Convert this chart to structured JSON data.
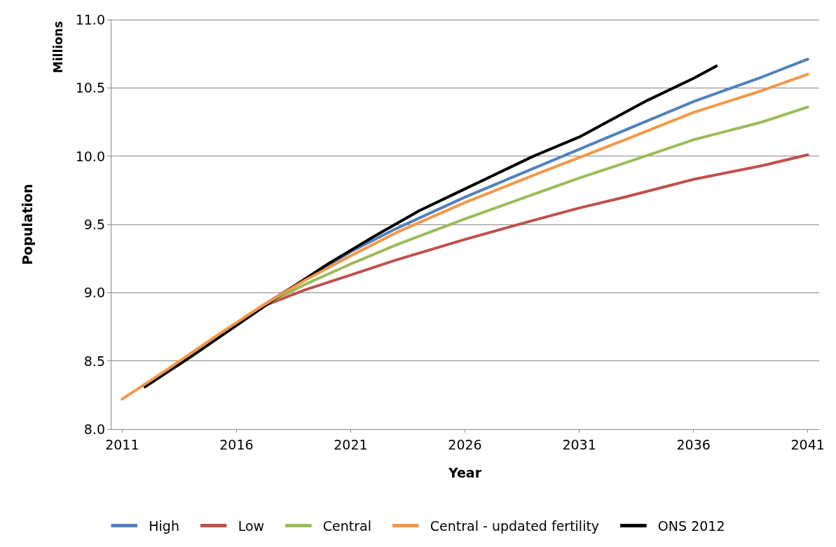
{
  "chart_data": {
    "type": "line",
    "xlabel": "Year",
    "ylabel": "Population",
    "annotations": [
      "Millions"
    ],
    "xlim": [
      2010.5,
      2041.5
    ],
    "xticks": [
      2011,
      2016,
      2021,
      2026,
      2031,
      2036,
      2041
    ],
    "ylim": [
      8,
      11
    ],
    "yticks": [
      {
        "value": 8,
        "label": "8.0"
      },
      {
        "value": 8.5,
        "label": "8.5"
      },
      {
        "value": 9,
        "label": "9.0"
      },
      {
        "value": 9.5,
        "label": "9.5"
      },
      {
        "value": 10,
        "label": "10.0"
      },
      {
        "value": 10.5,
        "label": "10.5"
      },
      {
        "value": 11,
        "label": "11.0"
      }
    ],
    "grid": "y",
    "legend": "bottom",
    "marker": "none",
    "line_style": "solid",
    "series": [
      {
        "name": "High",
        "color": "#4f81bd",
        "x": [
          2017,
          2019,
          2021,
          2023,
          2026,
          2029,
          2031,
          2033,
          2036,
          2039,
          2041
        ],
        "values": [
          8.89,
          9.1,
          9.3,
          9.47,
          9.7,
          9.91,
          10.05,
          10.19,
          10.4,
          10.58,
          10.71
        ]
      },
      {
        "name": "Low",
        "color": "#c0504d",
        "x": [
          2017,
          2019,
          2021,
          2023,
          2026,
          2029,
          2031,
          2033,
          2036,
          2039,
          2041
        ],
        "values": [
          8.89,
          9.02,
          9.13,
          9.24,
          9.39,
          9.53,
          9.62,
          9.7,
          9.83,
          9.93,
          10.01
        ]
      },
      {
        "name": "Central",
        "color": "#9bbb59",
        "x": [
          2017,
          2019,
          2021,
          2023,
          2026,
          2029,
          2031,
          2033,
          2036,
          2039,
          2041
        ],
        "values": [
          8.89,
          9.06,
          9.21,
          9.35,
          9.54,
          9.72,
          9.84,
          9.95,
          10.12,
          10.25,
          10.36
        ]
      },
      {
        "name": "Central - updated fertility",
        "color": "#f79646",
        "x": [
          2011,
          2013,
          2015,
          2017,
          2019,
          2021,
          2023,
          2026,
          2029,
          2031,
          2033,
          2036,
          2039,
          2041
        ],
        "values": [
          8.22,
          8.44,
          8.67,
          8.89,
          9.09,
          9.27,
          9.44,
          9.66,
          9.86,
          9.99,
          10.12,
          10.32,
          10.48,
          10.6
        ]
      },
      {
        "name": "ONS 2012",
        "color": "#000000",
        "x": [
          2012,
          2014,
          2016,
          2018,
          2020,
          2022,
          2024,
          2026,
          2029,
          2031,
          2034,
          2036,
          2037
        ],
        "values": [
          8.31,
          8.53,
          8.76,
          8.99,
          9.21,
          9.41,
          9.6,
          9.76,
          10.0,
          10.14,
          10.41,
          10.57,
          10.66
        ]
      }
    ]
  }
}
